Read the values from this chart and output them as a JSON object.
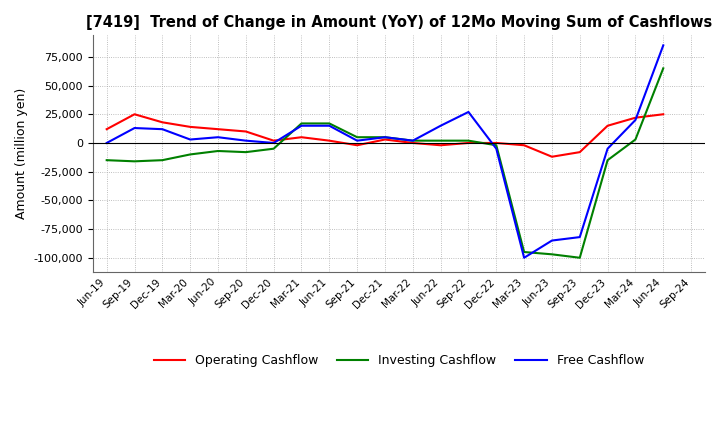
{
  "title": "[7419]  Trend of Change in Amount (YoY) of 12Mo Moving Sum of Cashflows",
  "ylabel": "Amount (million yen)",
  "ylim": [
    -112500,
    93750
  ],
  "yticks": [
    -100000,
    -75000,
    -50000,
    -25000,
    0,
    25000,
    50000,
    75000
  ],
  "x_labels": [
    "Jun-19",
    "Sep-19",
    "Dec-19",
    "Mar-20",
    "Jun-20",
    "Sep-20",
    "Dec-20",
    "Mar-21",
    "Jun-21",
    "Sep-21",
    "Dec-21",
    "Mar-22",
    "Jun-22",
    "Sep-22",
    "Dec-22",
    "Mar-23",
    "Jun-23",
    "Sep-23",
    "Dec-23",
    "Mar-24",
    "Jun-24",
    "Sep-24"
  ],
  "operating_cashflow": [
    12000,
    25000,
    18000,
    14000,
    12000,
    10000,
    2000,
    5000,
    2000,
    -2000,
    3000,
    0,
    -2000,
    0,
    0,
    -2000,
    -12000,
    -8000,
    15000,
    22000,
    25000,
    null
  ],
  "investing_cashflow": [
    -15000,
    -16000,
    -15000,
    -10000,
    -7000,
    -8000,
    -5000,
    17000,
    17000,
    5000,
    5000,
    2000,
    2000,
    2000,
    -2000,
    -95000,
    -97000,
    -100000,
    -15000,
    3000,
    65000,
    null
  ],
  "free_cashflow": [
    0,
    13000,
    12000,
    3000,
    5000,
    2000,
    0,
    15000,
    15000,
    2000,
    5000,
    2000,
    15000,
    27000,
    -5000,
    -100000,
    -85000,
    -82000,
    -5000,
    20000,
    85000,
    null
  ],
  "operating_color": "#ff0000",
  "investing_color": "#008000",
  "free_color": "#0000ff",
  "background_color": "#ffffff",
  "grid_color": "#aaaaaa"
}
